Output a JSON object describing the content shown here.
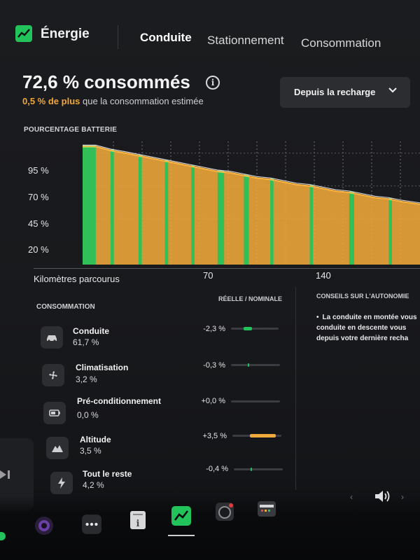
{
  "header": {
    "app_title": "Énergie",
    "tabs": [
      {
        "label": "Conduite",
        "active": true
      },
      {
        "label": "Stationnement",
        "active": false
      },
      {
        "label": "Consommation",
        "active": false
      }
    ]
  },
  "summary": {
    "headline": "72,6 % consommés",
    "delta_highlight": "0,5 % de plus",
    "delta_rest": " que la consommation estimée",
    "range_dropdown": "Depuis la recharge"
  },
  "chart_data": {
    "type": "area",
    "title": "POURCENTAGE BATTERIE",
    "xlabel": "Kilomètres parcourus",
    "ylabel": "",
    "x_ticks": [
      "70",
      "140"
    ],
    "y_ticks": [
      "95 %",
      "70 %",
      "45 %",
      "20 %"
    ],
    "xlim": [
      0,
      205
    ],
    "ylim": [
      10,
      105
    ],
    "grid": true,
    "series": [
      {
        "color": "#f0a93b",
        "x": [
          0,
          8,
          17,
          26,
          34,
          42,
          50,
          58,
          66,
          74,
          82,
          90,
          98,
          106,
          114,
          122,
          130,
          138,
          146,
          154,
          162,
          170,
          178,
          186,
          194,
          205
        ],
        "y": [
          100,
          100,
          97,
          95,
          93,
          91,
          89,
          87,
          85,
          83,
          81,
          80,
          78,
          76,
          75,
          73,
          71,
          70,
          68,
          66,
          65,
          63,
          61,
          60,
          58,
          56
        ]
      }
    ],
    "green_segments": [
      [
        0,
        8
      ],
      [
        17,
        19
      ],
      [
        34,
        36
      ],
      [
        50,
        52
      ],
      [
        66,
        68
      ],
      [
        82,
        86
      ],
      [
        98,
        101
      ],
      [
        114,
        116
      ],
      [
        138,
        140
      ],
      [
        162,
        165
      ],
      [
        186,
        188
      ]
    ]
  },
  "consumption": {
    "title": "CONSOMMATION",
    "header_right": "RÉELLE / NOMINALE",
    "rows": [
      {
        "icon": "car-icon",
        "label": "Conduite",
        "pct": "61,7 %",
        "delta": "-2,3 %",
        "bar": -2.3
      },
      {
        "icon": "fan-icon",
        "label": "Climatisation",
        "pct": "3,2 %",
        "delta": "-0,3 %",
        "bar": -0.3
      },
      {
        "icon": "battery-icon",
        "label": "Pré-conditionnement",
        "pct": "0,0 %",
        "delta": "+0,0 %",
        "bar": 0
      },
      {
        "icon": "mountain-icon",
        "label": "Altitude",
        "pct": "3,5 %",
        "delta": "+3,5 %",
        "bar": 3.5
      },
      {
        "icon": "lightning-icon",
        "label": "Tout le reste",
        "pct": "4,2 %",
        "delta": "-0,4 %",
        "bar": -0.4
      }
    ]
  },
  "tips": {
    "title": "CONSEILS SUR L'AUTONOMIE",
    "text": "La conduite en montée vous conduite en descente vous depuis votre dernière recha"
  },
  "colors": {
    "accent_green": "#22c35a",
    "accent_orange": "#f0a93b"
  }
}
